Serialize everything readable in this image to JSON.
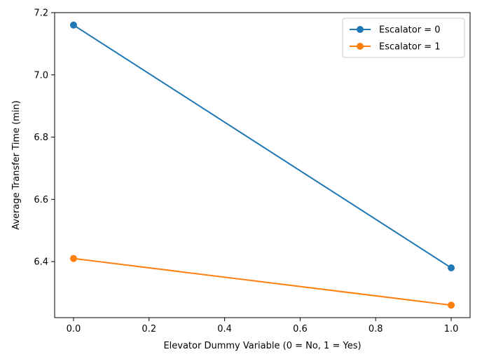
{
  "chart_data": {
    "type": "line",
    "title": "",
    "xlabel": "Elevator Dummy Variable (0 = No, 1 = Yes)",
    "ylabel": "Average Transfer Time (min)",
    "xlim": [
      -0.05,
      1.05
    ],
    "ylim": [
      6.22,
      7.2
    ],
    "xticks": [
      0.0,
      0.2,
      0.4,
      0.6,
      0.8,
      1.0
    ],
    "xtick_labels": [
      "0.0",
      "0.2",
      "0.4",
      "0.6",
      "0.8",
      "1.0"
    ],
    "yticks": [
      6.4,
      6.6,
      6.8,
      7.0,
      7.2
    ],
    "ytick_labels": [
      "6.4",
      "6.6",
      "6.8",
      "7.0",
      "7.2"
    ],
    "grid": false,
    "legend_position": "top-right",
    "series": [
      {
        "name": "Escalator = 0",
        "color": "#1f77b4",
        "x": [
          0,
          1
        ],
        "y": [
          7.16,
          6.38
        ]
      },
      {
        "name": "Escalator = 1",
        "color": "#ff7f0e",
        "x": [
          0,
          1
        ],
        "y": [
          6.41,
          6.26
        ]
      }
    ]
  }
}
